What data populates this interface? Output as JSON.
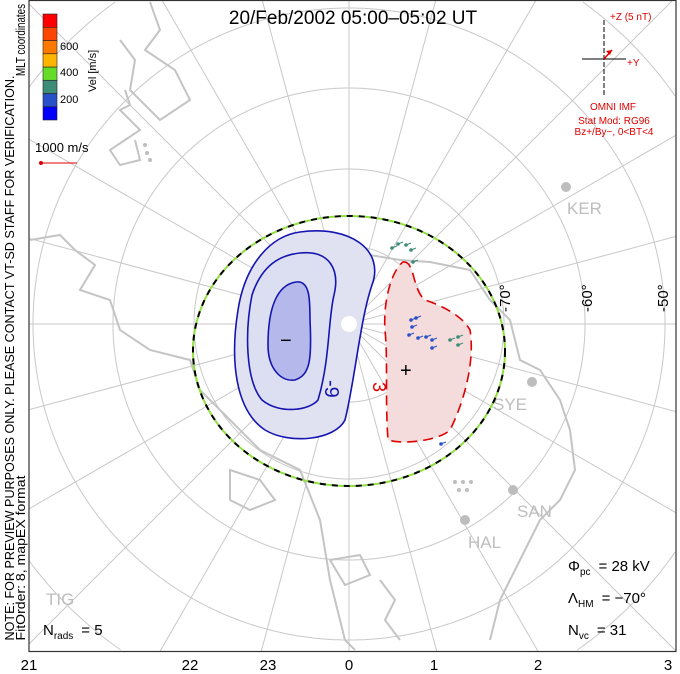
{
  "title": "20/Feb/2002 05:00–05:02 UT",
  "side_note_1": "NOTE: FOR PREVIEW PURPOSES ONLY. PLEASE CONTACT VT-SD STAFF FOR VERIFICATION.",
  "side_note_2": "FitOrder: 8, mapEX format",
  "side_note_3": "MLT coordinates",
  "colorbar": {
    "label": "Vel [m/s]",
    "ticks": [
      "200",
      "400",
      "600"
    ],
    "colors": [
      "#0000ff",
      "#2850c8",
      "#3c8c78",
      "#64dc28",
      "#ffb400",
      "#ff7800",
      "#ff4600",
      "#ff0000"
    ]
  },
  "scale_vector": "1000 m/s",
  "imf": {
    "z_label": "+Z (5 nT)",
    "y_label": "+Y",
    "source": "OMNI IMF",
    "stat_mod": "Stat Mod: RG96",
    "condition": "Bz+/By−, 0<BT<4"
  },
  "lat_labels": [
    "-70°",
    "-60°",
    "-50°"
  ],
  "mlt_labels": [
    "21",
    "22",
    "23",
    "0",
    "1",
    "2",
    "3"
  ],
  "stations": [
    "KER",
    "SYE",
    "SAN",
    "HAL",
    "TIG"
  ],
  "contours": {
    "neg_label": "-9",
    "pos_label": "3",
    "min_marker": "−",
    "max_marker": "+"
  },
  "stats": {
    "phi_sym": "Φ",
    "phi_sub": "pc",
    "phi_val": "= 28 kV",
    "lam_sym": "Λ",
    "lam_sub": "HM",
    "lam_val": "= −70°",
    "nvc_sym": "N",
    "nvc_sub": "vc",
    "nvc_val": "= 31",
    "nrads_sym": "N",
    "nrads_sub": "rads",
    "nrads_val": "= 5"
  }
}
